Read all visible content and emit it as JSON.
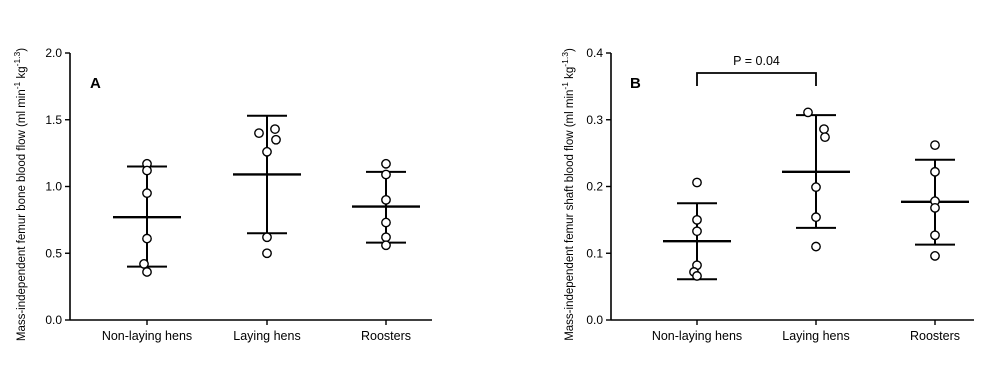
{
  "chart_data": [
    {
      "type": "scatter",
      "panel": "A",
      "ylabel": "Mass-independent femur bone blood flow (ml min",
      "ylabel_sup1": "-1",
      "ylabel_mid": " kg",
      "ylabel_sup2": "-1.3",
      "ylabel_end": ")",
      "ylim": [
        0,
        2.0
      ],
      "yticks": [
        "0.0",
        "0.5",
        "1.0",
        "1.5",
        "2.0"
      ],
      "ytick_values": [
        0,
        0.5,
        1.0,
        1.5,
        2.0
      ],
      "categories": [
        "Non-laying hens",
        "Laying hens",
        "Roosters"
      ],
      "groups": [
        {
          "points": [
            1.17,
            1.12,
            0.95,
            0.61,
            0.42,
            0.36
          ],
          "mean": 0.77,
          "upper": 1.15,
          "lower": 0.4
        },
        {
          "points": [
            1.4,
            1.43,
            1.35,
            1.26,
            0.62,
            0.5
          ],
          "mean": 1.09,
          "upper": 1.53,
          "lower": 0.65
        },
        {
          "points": [
            1.17,
            1.09,
            0.9,
            0.73,
            0.62,
            0.56
          ],
          "mean": 0.85,
          "upper": 1.11,
          "lower": 0.58
        }
      ]
    },
    {
      "type": "scatter",
      "panel": "B",
      "ylabel": "Mass-independent femur shaft blood flow (ml min",
      "ylabel_sup1": "-1",
      "ylabel_mid": " kg",
      "ylabel_sup2": "-1.3",
      "ylabel_end": ")",
      "ylim": [
        0,
        0.4
      ],
      "yticks": [
        "0.0",
        "0.1",
        "0.2",
        "0.3",
        "0.4"
      ],
      "ytick_values": [
        0,
        0.1,
        0.2,
        0.3,
        0.4
      ],
      "categories": [
        "Non-laying hens",
        "Laying hens",
        "Roosters"
      ],
      "groups": [
        {
          "points": [
            0.206,
            0.15,
            0.133,
            0.082,
            0.072,
            0.066
          ],
          "mean": 0.118,
          "upper": 0.175,
          "lower": 0.061
        },
        {
          "points": [
            0.311,
            0.286,
            0.274,
            0.199,
            0.154,
            0.11
          ],
          "mean": 0.222,
          "upper": 0.307,
          "lower": 0.138
        },
        {
          "points": [
            0.262,
            0.222,
            0.178,
            0.168,
            0.127,
            0.096
          ],
          "mean": 0.177,
          "upper": 0.24,
          "lower": 0.113
        }
      ],
      "annotation": {
        "text": "P = 0.04",
        "from": 0,
        "to": 1,
        "y": 0.37
      }
    }
  ]
}
